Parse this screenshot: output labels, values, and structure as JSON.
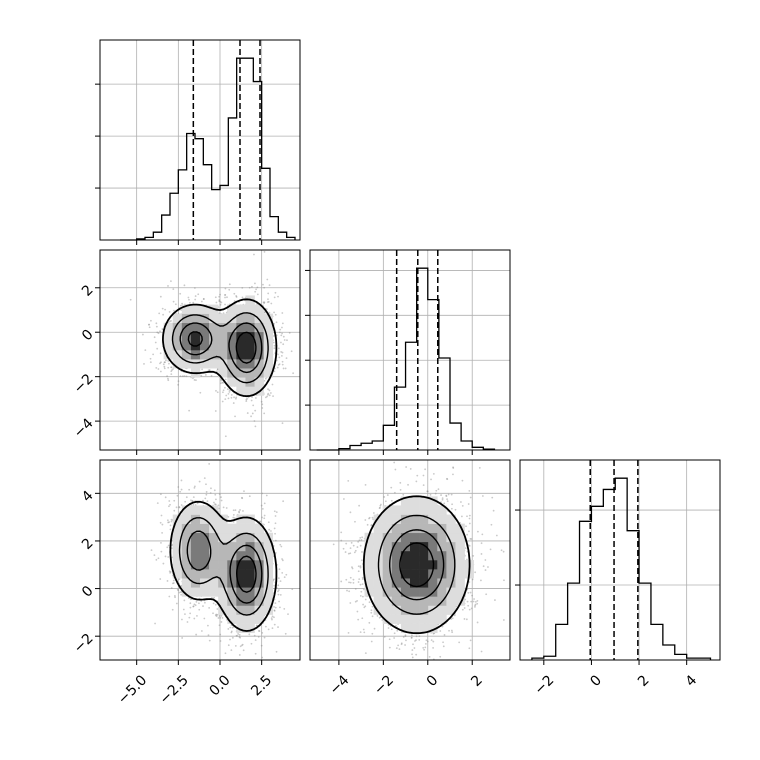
{
  "chart_data": [
    {
      "type": "histogram",
      "panel": "row0-col0",
      "variable_index": 0,
      "xlim": [
        -7.2,
        4.8
      ],
      "x_ticks": [
        -5.0,
        -2.5,
        0.0,
        2.5
      ],
      "quantile_lines": [
        -1.6,
        1.2,
        2.4
      ],
      "bin_edges": [
        -6.0,
        -5.5,
        -5.0,
        -4.5,
        -4.0,
        -3.5,
        -3.0,
        -2.5,
        -2.0,
        -1.5,
        -1.0,
        -0.5,
        0.0,
        0.5,
        1.0,
        1.5,
        2.0,
        2.5,
        3.0,
        3.5,
        4.0,
        4.5
      ],
      "counts": [
        0,
        0,
        2,
        5,
        15,
        48,
        90,
        135,
        205,
        195,
        145,
        97,
        105,
        235,
        350,
        350,
        305,
        138,
        45,
        15,
        5
      ]
    },
    {
      "type": "scatter-density",
      "panel": "row1-col0",
      "x_variable": 0,
      "y_variable": 1,
      "xlim": [
        -7.2,
        4.8
      ],
      "ylim": [
        -5.3,
        3.7
      ],
      "x_ticks": [
        -5.0,
        -2.5,
        0.0,
        2.5
      ],
      "y_ticks": [
        -4,
        -2,
        0,
        2
      ],
      "modes": [
        {
          "x": -1.5,
          "y": -0.3,
          "sx": 1.0,
          "sy": 0.8,
          "weight": 0.42
        },
        {
          "x": 1.6,
          "y": -0.7,
          "sx": 0.9,
          "sy": 1.1,
          "weight": 0.58
        }
      ],
      "contour_levels": 4
    },
    {
      "type": "histogram",
      "panel": "row1-col1",
      "variable_index": 1,
      "xlim": [
        -5.3,
        3.7
      ],
      "x_ticks": [
        -4,
        -2,
        0,
        2
      ],
      "quantile_lines": [
        -1.4,
        -0.45,
        0.45
      ],
      "bin_edges": [
        -5.0,
        -4.5,
        -4.0,
        -3.5,
        -3.0,
        -2.5,
        -2.0,
        -1.5,
        -1.0,
        -0.5,
        0.0,
        0.5,
        1.0,
        1.5,
        2.0,
        2.5,
        3.0
      ],
      "counts": [
        0,
        0,
        3,
        10,
        15,
        20,
        55,
        140,
        240,
        405,
        335,
        205,
        60,
        20,
        6,
        2
      ]
    },
    {
      "type": "scatter-density",
      "panel": "row2-col0",
      "x_variable": 0,
      "y_variable": 2,
      "xlim": [
        -7.2,
        4.8
      ],
      "ylim": [
        -3.0,
        5.4
      ],
      "x_ticks": [
        -5.0,
        -2.5,
        0.0,
        2.5
      ],
      "y_ticks": [
        -2,
        0,
        2,
        4
      ],
      "modes": [
        {
          "x": -1.3,
          "y": 1.6,
          "sx": 0.9,
          "sy": 1.1,
          "weight": 0.42
        },
        {
          "x": 1.6,
          "y": 0.6,
          "sx": 0.9,
          "sy": 1.2,
          "weight": 0.58
        }
      ],
      "contour_levels": 4
    },
    {
      "type": "scatter-density",
      "panel": "row2-col1",
      "x_variable": 1,
      "y_variable": 2,
      "xlim": [
        -5.3,
        3.7
      ],
      "ylim": [
        -3.0,
        5.4
      ],
      "x_ticks": [
        -4,
        -2,
        0,
        2
      ],
      "y_ticks": [
        -2,
        0,
        2,
        4
      ],
      "modes": [
        {
          "x": -0.5,
          "y": 1.0,
          "sx": 1.2,
          "sy": 1.45,
          "weight": 1.0
        }
      ],
      "contour_levels": 4
    },
    {
      "type": "histogram",
      "panel": "row2-col2",
      "variable_index": 2,
      "xlim": [
        -3.0,
        5.4
      ],
      "x_ticks": [
        -2,
        0,
        2,
        4
      ],
      "quantile_lines": [
        -0.05,
        0.95,
        1.95
      ],
      "bin_edges": [
        -2.5,
        -2.0,
        -1.5,
        -1.0,
        -0.5,
        0.0,
        0.5,
        1.0,
        1.5,
        2.0,
        2.5,
        3.0,
        3.5,
        4.0,
        4.5,
        5.0
      ],
      "counts": [
        5,
        10,
        95,
        205,
        370,
        410,
        455,
        485,
        345,
        205,
        95,
        40,
        15,
        5,
        5
      ]
    }
  ],
  "x_tick_labels": {
    "col0": [
      "−5.0",
      "−2.5",
      "0.0",
      "2.5"
    ],
    "col1": [
      "−4",
      "−2",
      "0",
      "2"
    ],
    "col2": [
      "−2",
      "0",
      "2",
      "4"
    ]
  },
  "y_tick_labels": {
    "row1": [
      "−4",
      "−2",
      "0",
      "2"
    ],
    "row2": [
      "−2",
      "0",
      "2",
      "4"
    ]
  },
  "colors": {
    "line": "#000000",
    "grid": "#b0b0b0",
    "points": "#8a8a8a",
    "fill_shades": [
      "#f3f3f3",
      "#dddddd",
      "#b7b7b7",
      "#7a7a7a",
      "#2a2a2a"
    ]
  }
}
